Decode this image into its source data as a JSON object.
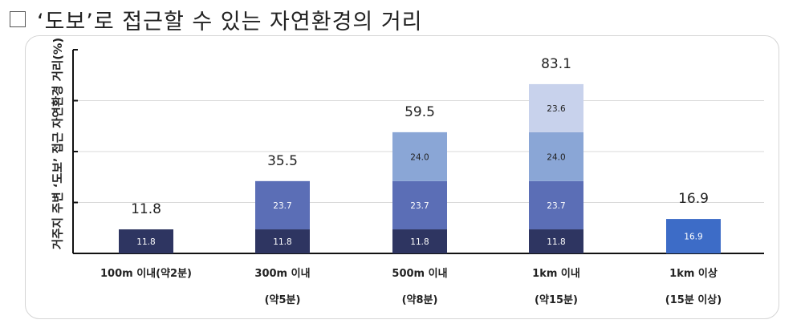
{
  "heading": {
    "box_icon": "square-outline-icon",
    "text": "‘도보’로 접근할 수 있는 자연환경의 거리"
  },
  "chart_data": {
    "type": "bar",
    "stacked": true,
    "title": "",
    "ylabel": "거주지 주변 ‘도보’ 접근 자연환경 거리(%)",
    "xlabel": "",
    "ylim": [
      0,
      100
    ],
    "grid": true,
    "legend": "none",
    "categories": [
      [
        "100m 이내(약2분)"
      ],
      [
        "300m 이내",
        "(약5분)"
      ],
      [
        "500m 이내",
        "(약8분)"
      ],
      [
        "1km 이내",
        "(약15분)"
      ],
      [
        "1km 이상",
        "(15분 이상)"
      ]
    ],
    "totals": [
      "11.8",
      "35.5",
      "59.5",
      "83.1",
      "16.9"
    ],
    "stacks": [
      [
        {
          "value": 11.8,
          "label": "11.8",
          "color": "#2e3561"
        }
      ],
      [
        {
          "value": 11.8,
          "label": "11.8",
          "color": "#2e3561"
        },
        {
          "value": 23.7,
          "label": "23.7",
          "color": "#5b6eb6"
        }
      ],
      [
        {
          "value": 11.8,
          "label": "11.8",
          "color": "#2e3561"
        },
        {
          "value": 23.7,
          "label": "23.7",
          "color": "#5b6eb6"
        },
        {
          "value": 24.0,
          "label": "24.0",
          "color": "#8aa6d6"
        }
      ],
      [
        {
          "value": 11.8,
          "label": "11.8",
          "color": "#2e3561"
        },
        {
          "value": 23.7,
          "label": "23.7",
          "color": "#5b6eb6"
        },
        {
          "value": 24.0,
          "label": "24.0",
          "color": "#8aa6d6"
        },
        {
          "value": 23.6,
          "label": "23.6",
          "color": "#c8d2ec"
        }
      ],
      [
        {
          "value": 16.9,
          "label": "16.9",
          "color": "#3d6cc7"
        }
      ]
    ]
  }
}
